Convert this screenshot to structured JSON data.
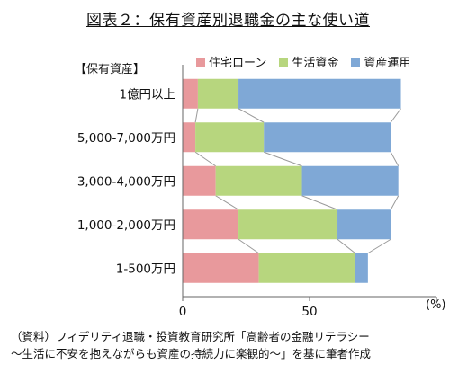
{
  "chart_data": {
    "type": "bar",
    "orientation": "horizontal",
    "stacked": true,
    "title": "図表２：保有資産別退職金の主な使い道",
    "category_header": "【保有資産】",
    "categories": [
      "1億円以上",
      "5,000-7,000万円",
      "3,000-4,000万円",
      "1,000-2,000万円",
      "1-500万円"
    ],
    "series": [
      {
        "name": "住宅ローン",
        "color": "#e8999c",
        "values": [
          6,
          5,
          13,
          22,
          30
        ]
      },
      {
        "name": "生活資金",
        "color": "#b7d67e",
        "values": [
          16,
          27,
          34,
          39,
          38
        ]
      },
      {
        "name": "資産運用",
        "color": "#7fa8d6",
        "values": [
          64,
          50,
          38,
          21,
          5
        ]
      }
    ],
    "xlim": [
      0,
      100
    ],
    "xticks": [
      "0",
      "50"
    ],
    "unit": "(%)",
    "grid": false,
    "legend_position": "top"
  },
  "source_lines": [
    "（資料）フィデリティ退職・投資教育研究所「高齢者の金融リテラシー",
    "～生活に不安を抱えながらも資産の持続力に楽観的～」を基に筆者作成"
  ]
}
